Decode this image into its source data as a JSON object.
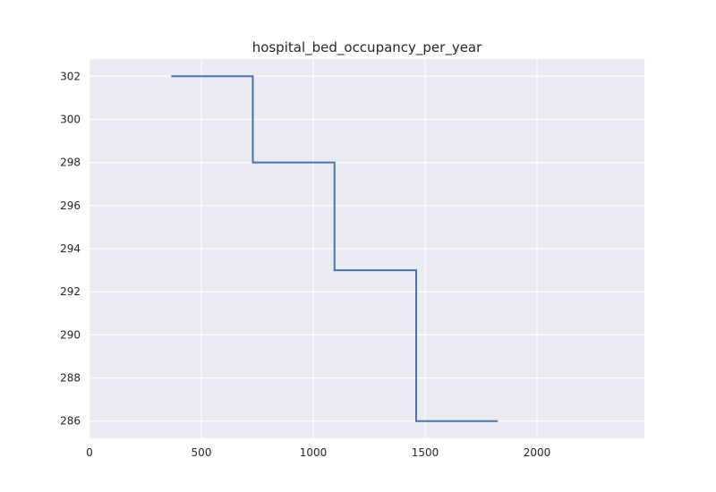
{
  "chart_data": {
    "type": "line",
    "drawstyle": "steps-post",
    "title": "hospital_bed_occupancy_per_year",
    "xlabel": "",
    "ylabel": "",
    "xlim": [
      0,
      2480
    ],
    "ylim": [
      285.2,
      302.8
    ],
    "xticks": [
      0,
      500,
      1000,
      1500,
      2000
    ],
    "yticks": [
      286,
      288,
      290,
      292,
      294,
      296,
      298,
      300,
      302
    ],
    "grid": true,
    "legend": false,
    "series": [
      {
        "color": "#4c72b0",
        "x": [
          365,
          730,
          1095,
          1460,
          1825
        ],
        "y": [
          302,
          298,
          293,
          286,
          286
        ]
      }
    ]
  },
  "colors": {
    "plot_background": "#eaeaf2",
    "grid": "#ffffff",
    "text": "#262626"
  }
}
